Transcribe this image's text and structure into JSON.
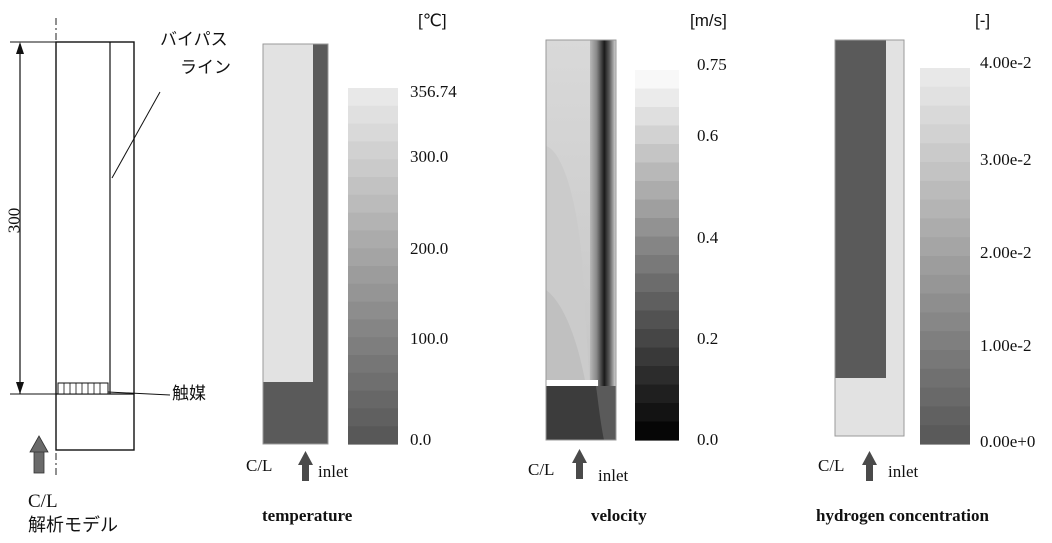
{
  "model": {
    "dimension": "300",
    "bypass_line": [
      "バイパス",
      "ライン"
    ],
    "catalyst": "触媒",
    "centerline": "C/L",
    "caption": "解析モデル"
  },
  "panels": {
    "temperature": {
      "caption": "temperature",
      "unit": "[℃]",
      "ticks": [
        "356.74",
        "300.0",
        "200.0",
        "100.0",
        "0.0"
      ],
      "cl": "C/L",
      "inlet": "inlet"
    },
    "velocity": {
      "caption": "velocity",
      "unit": "[m/s]",
      "ticks": [
        "0.75",
        "0.6",
        "0.4",
        "0.2",
        "0.0"
      ],
      "cl": "C/L",
      "inlet": "inlet"
    },
    "hydrogen": {
      "caption": "hydrogen concentration",
      "unit": "[-]",
      "ticks": [
        "4.00e-2",
        "3.00e-2",
        "2.00e-2",
        "1.00e-2",
        "0.00e+0"
      ],
      "cl": "C/L",
      "inlet": "inlet"
    }
  },
  "colors": {
    "dark_region": "#5a5a5a",
    "light_region": "#e2e2e2"
  }
}
